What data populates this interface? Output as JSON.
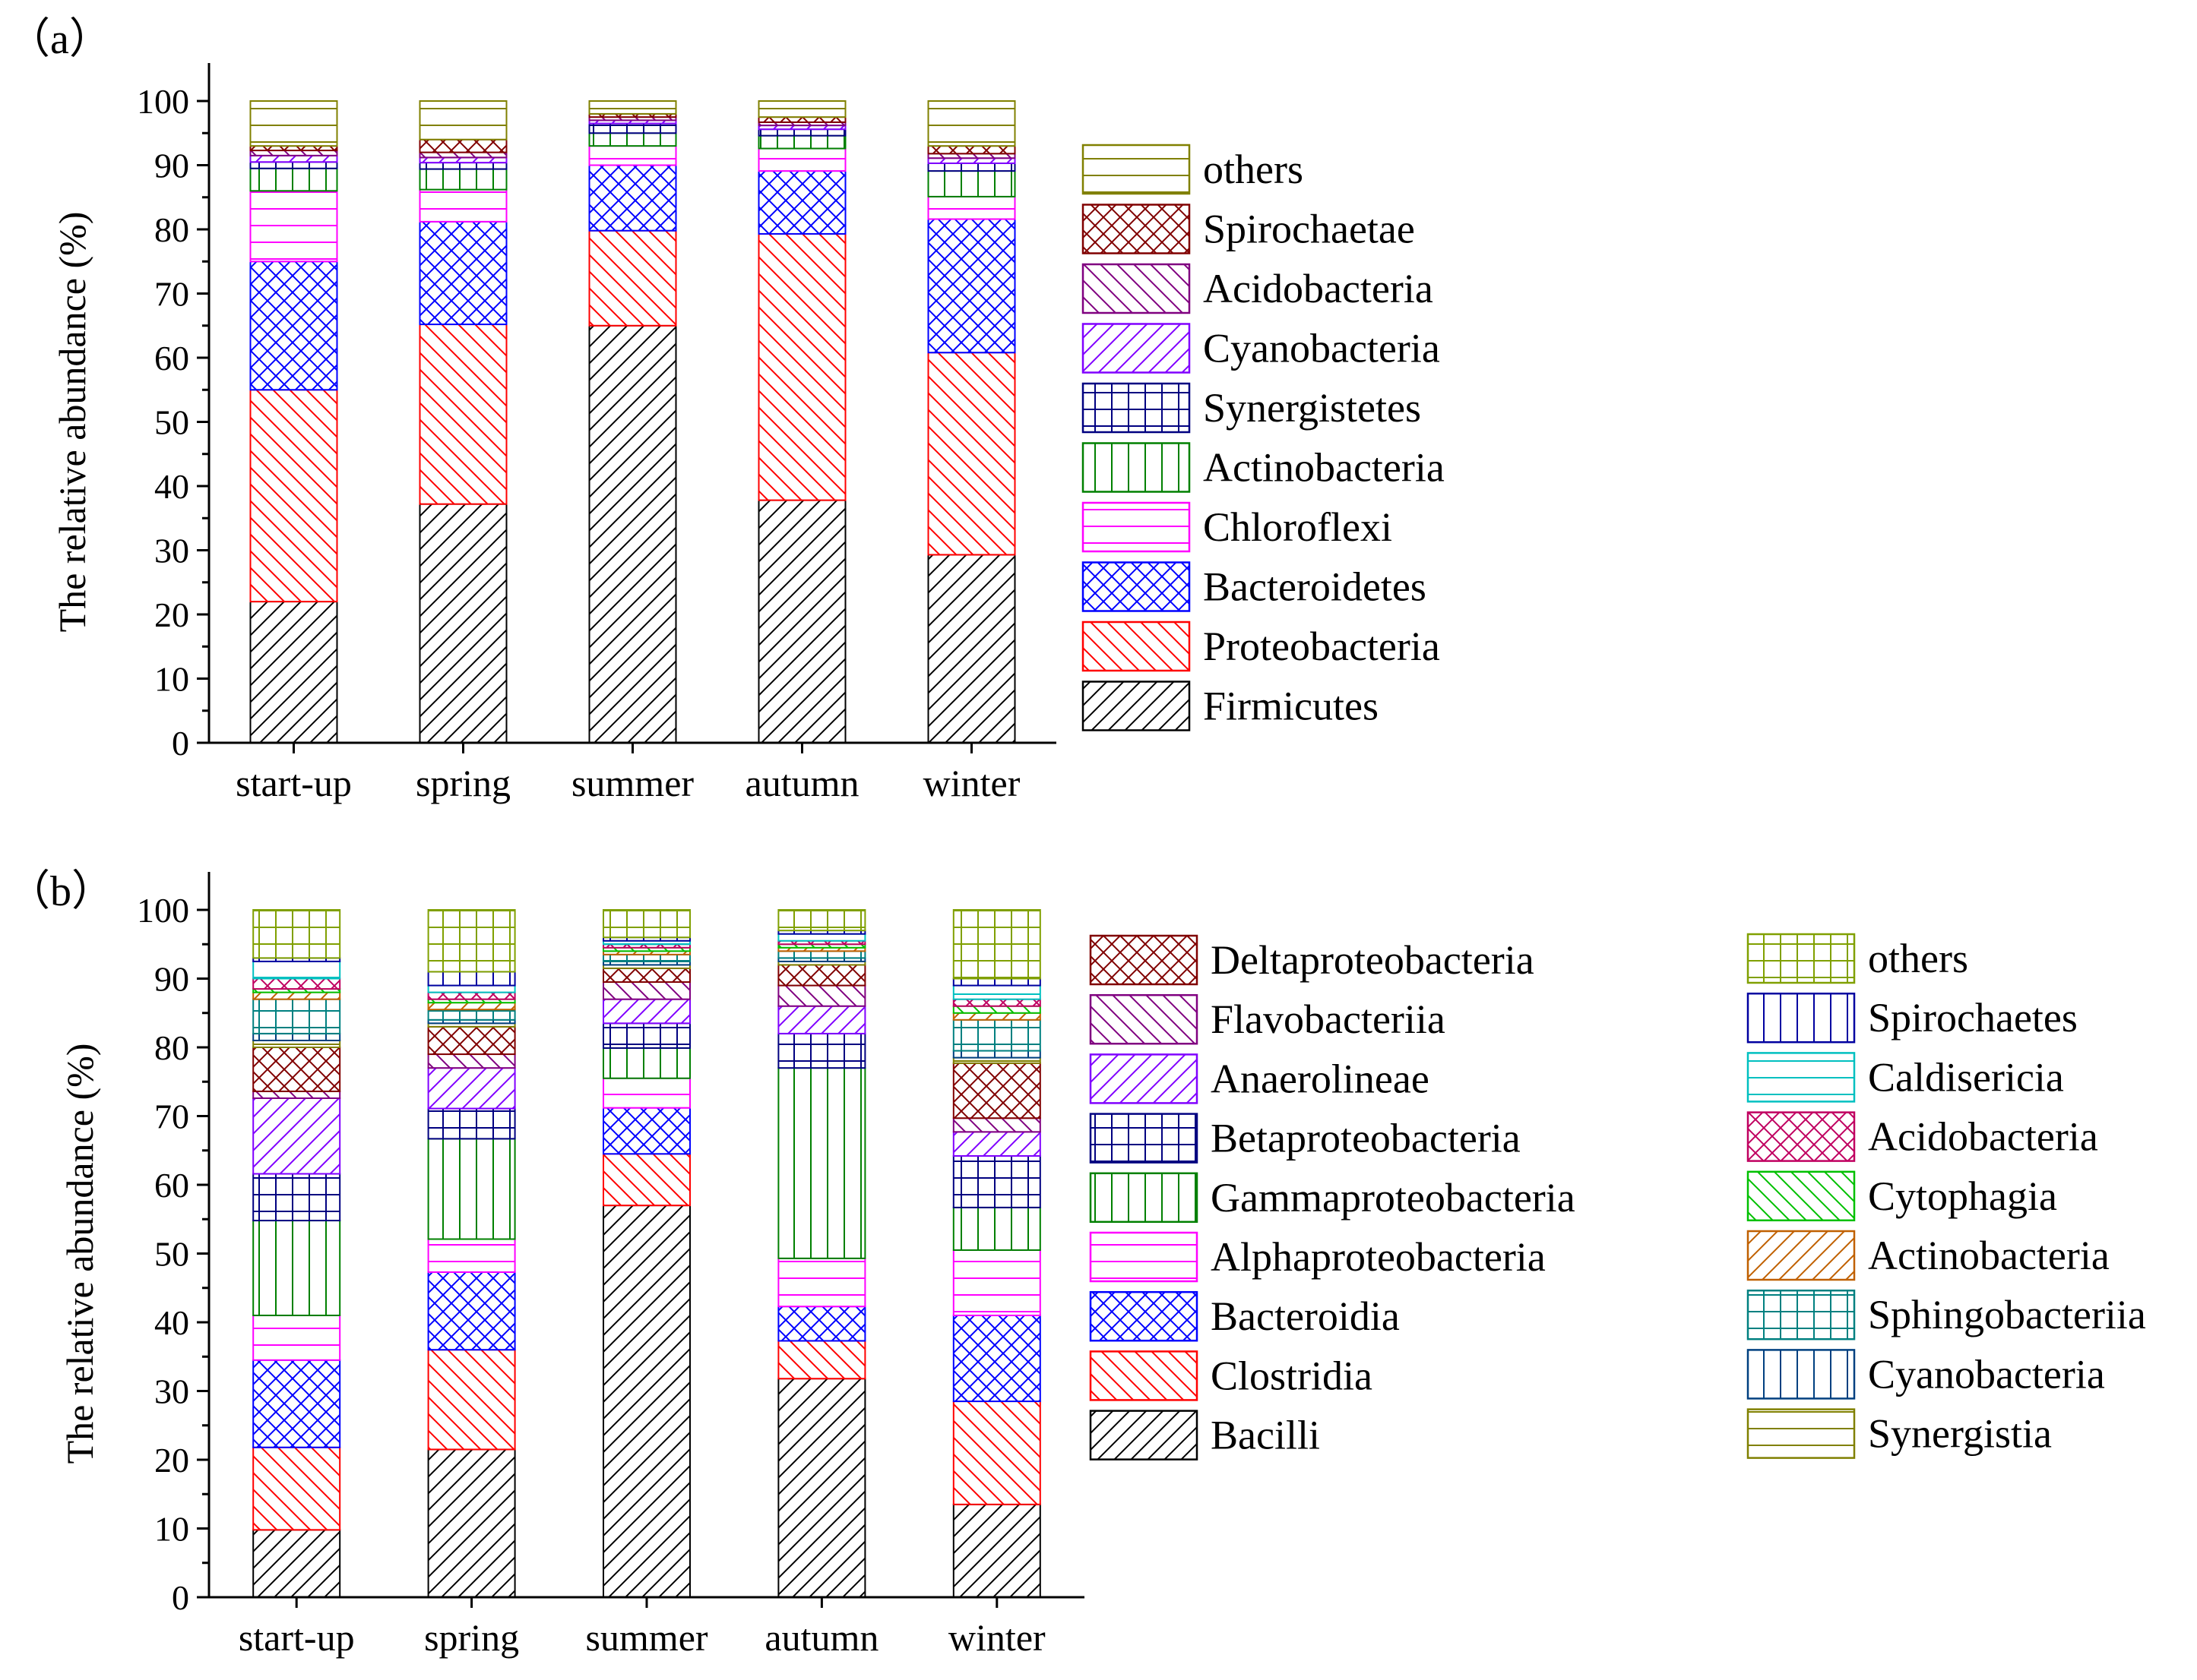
{
  "chart_data": [
    {
      "panel_label": "（a）",
      "type": "bar",
      "stacked": true,
      "ylabel": "The relative abundance (%)",
      "ylim": [
        0,
        100
      ],
      "yticks": [
        0,
        10,
        20,
        30,
        40,
        50,
        60,
        70,
        80,
        90,
        100
      ],
      "categories": [
        "start-up",
        "spring",
        "summer",
        "autumn",
        "winter"
      ],
      "legend_position": "right",
      "series": [
        {
          "name": "Firmicutes",
          "color": "#000000",
          "pattern": "hatch-diag-up",
          "values": [
            22.0,
            37.2,
            65.0,
            37.8,
            29.3
          ]
        },
        {
          "name": "Proteobacteria",
          "color": "#ff0000",
          "pattern": "hatch-diag-down",
          "values": [
            33.0,
            28.0,
            14.8,
            41.5,
            31.5
          ]
        },
        {
          "name": "Bacteroidetes",
          "color": "#0000ff",
          "pattern": "crosshatch-diag",
          "values": [
            20.0,
            16.0,
            10.2,
            9.8,
            20.8
          ]
        },
        {
          "name": "Chloroflexi",
          "color": "#ff00ff",
          "pattern": "horizontal",
          "values": [
            11.0,
            5.0,
            3.0,
            3.5,
            3.5
          ]
        },
        {
          "name": "Actinobacteria",
          "color": "#008000",
          "pattern": "vertical",
          "values": [
            3.5,
            3.2,
            2.0,
            2.0,
            4.0
          ]
        },
        {
          "name": "Synergistetes",
          "color": "#000080",
          "pattern": "grid",
          "values": [
            1.0,
            1.0,
            1.5,
            1.0,
            1.2
          ]
        },
        {
          "name": "Cyanobacteria",
          "color": "#8000ff",
          "pattern": "hatch-diag-up",
          "values": [
            1.0,
            0.8,
            0.5,
            0.6,
            0.8
          ]
        },
        {
          "name": "Acidobacteria",
          "color": "#800080",
          "pattern": "hatch-diag-down",
          "values": [
            0.8,
            0.8,
            0.5,
            0.5,
            0.7
          ]
        },
        {
          "name": "Spirochaetae",
          "color": "#800000",
          "pattern": "crosshatch-diag",
          "values": [
            0.7,
            2.0,
            0.5,
            0.8,
            1.2
          ]
        },
        {
          "name": "others",
          "color": "#808000",
          "pattern": "horizontal",
          "values": [
            7.0,
            6.0,
            2.0,
            2.5,
            7.0
          ]
        }
      ]
    },
    {
      "panel_label": "（b）",
      "type": "bar",
      "stacked": true,
      "ylabel": "The relative abundance (%)",
      "ylim": [
        0,
        100
      ],
      "yticks": [
        0,
        10,
        20,
        30,
        40,
        50,
        60,
        70,
        80,
        90,
        100
      ],
      "categories": [
        "start-up",
        "spring",
        "summer",
        "autumn",
        "winter"
      ],
      "legend_position": "right",
      "series": [
        {
          "name": "Bacilli",
          "color": "#000000",
          "pattern": "hatch-diag-up",
          "values": [
            9.8,
            21.5,
            57.0,
            31.8,
            13.5
          ]
        },
        {
          "name": "Clostridia",
          "color": "#ff0000",
          "pattern": "hatch-diag-down",
          "values": [
            12.0,
            14.5,
            7.5,
            5.5,
            15.0
          ]
        },
        {
          "name": "Bacteroidia",
          "color": "#0000ff",
          "pattern": "crosshatch-diag",
          "values": [
            12.7,
            11.3,
            6.7,
            5.0,
            12.5
          ]
        },
        {
          "name": "Alphaproteobacteria",
          "color": "#ff00ff",
          "pattern": "horizontal",
          "values": [
            6.5,
            4.8,
            4.3,
            7.0,
            9.5
          ]
        },
        {
          "name": "Gammaproteobacteria",
          "color": "#008000",
          "pattern": "vertical",
          "values": [
            13.8,
            14.6,
            4.4,
            27.7,
            6.2
          ]
        },
        {
          "name": "Betaproteobacteria",
          "color": "#000080",
          "pattern": "grid",
          "values": [
            6.8,
            4.4,
            3.6,
            5.0,
            7.5
          ]
        },
        {
          "name": "Anaerolineae",
          "color": "#8000ff",
          "pattern": "hatch-diag-up",
          "values": [
            11.0,
            5.9,
            3.5,
            4.0,
            3.5
          ]
        },
        {
          "name": "Flavobacteriia",
          "color": "#800080",
          "pattern": "hatch-diag-down",
          "values": [
            1.0,
            2.0,
            2.5,
            3.0,
            2.0
          ]
        },
        {
          "name": "Deltaproteobacteria",
          "color": "#800000",
          "pattern": "crosshatch-diag",
          "values": [
            6.4,
            4.0,
            2.0,
            3.0,
            8.0
          ]
        },
        {
          "name": "Synergistia",
          "color": "#808000",
          "pattern": "horizontal",
          "values": [
            1.0,
            0.5,
            0.5,
            0.5,
            0.8
          ]
        },
        {
          "name": "Cyanobacteria",
          "color": "#004080",
          "pattern": "vertical",
          "values": [
            1.0,
            0.5,
            0.5,
            0.5,
            1.0
          ]
        },
        {
          "name": "Sphingobacteriia",
          "color": "#008080",
          "pattern": "grid",
          "values": [
            5.0,
            1.5,
            1.0,
            1.0,
            4.5
          ]
        },
        {
          "name": "Actinobacteria",
          "color": "#c06000",
          "pattern": "hatch-diag-up",
          "values": [
            1.0,
            1.0,
            0.5,
            0.5,
            1.0
          ]
        },
        {
          "name": "Cytophagia",
          "color": "#00c000",
          "pattern": "hatch-diag-down",
          "values": [
            0.5,
            0.5,
            0.5,
            0.5,
            1.0
          ]
        },
        {
          "name": "Acidobacteria",
          "color": "#c00060",
          "pattern": "crosshatch-diag",
          "values": [
            1.5,
            1.0,
            0.5,
            0.5,
            1.0
          ]
        },
        {
          "name": "Caldisericia",
          "color": "#00c0c0",
          "pattern": "horizontal",
          "values": [
            2.5,
            1.0,
            0.5,
            1.0,
            2.0
          ]
        },
        {
          "name": "Spirochaetes",
          "color": "#0000a0",
          "pattern": "vertical",
          "values": [
            0.5,
            2.0,
            0.5,
            0.5,
            1.0
          ]
        },
        {
          "name": "others",
          "color": "#80a000",
          "pattern": "grid",
          "values": [
            7.0,
            9.0,
            4.0,
            3.0,
            10.0
          ]
        }
      ]
    }
  ]
}
